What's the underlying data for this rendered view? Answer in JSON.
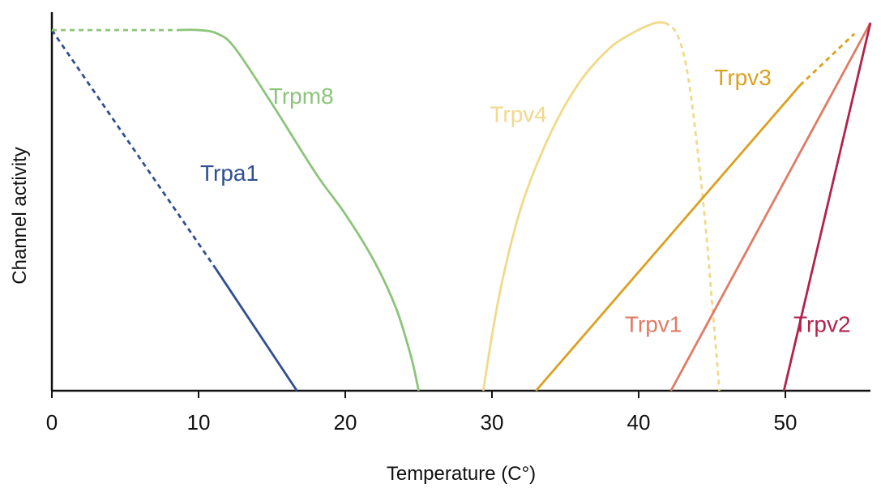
{
  "chart_data": {
    "type": "line",
    "xlabel": "Temperature (C°)",
    "ylabel": "Channel activity",
    "xlim": [
      0,
      55.8
    ],
    "ylim": [
      0,
      1
    ],
    "xticks": [
      0,
      10,
      20,
      30,
      40,
      50
    ],
    "yticks": [],
    "grid": false,
    "legend": "none",
    "series": [
      {
        "name": "Trpa1",
        "color": "#2f4f8f",
        "segments": [
          {
            "style": "dashed",
            "x": [
              0,
              11.2
            ],
            "y": [
              0.98,
              0.33
            ]
          },
          {
            "style": "solid",
            "x": [
              11.2,
              16.7
            ],
            "y": [
              0.33,
              0.0
            ]
          }
        ]
      },
      {
        "name": "Trpm8",
        "color": "#8cc47a",
        "segments": [
          {
            "style": "dashed",
            "x": [
              0,
              8.5
            ],
            "y": [
              0.98,
              0.98
            ]
          },
          {
            "style": "solid",
            "x": [
              8.5,
              10.0,
              11.3,
              12.5,
              15.0,
              18.0,
              20.0,
              22.0,
              23.5,
              24.5,
              25.0
            ],
            "y": [
              0.98,
              0.98,
              0.97,
              0.93,
              0.78,
              0.59,
              0.48,
              0.35,
              0.22,
              0.09,
              0.0
            ]
          }
        ]
      },
      {
        "name": "Trpv4",
        "color": "#f1d98a",
        "segments": [
          {
            "style": "solid",
            "x": [
              29.4,
              30.5,
              32.0,
              34.0,
              36.0,
              38.0,
              39.5,
              40.5,
              41.2,
              41.8
            ],
            "y": [
              0.0,
              0.26,
              0.5,
              0.7,
              0.84,
              0.93,
              0.97,
              0.99,
              1.0,
              1.0
            ]
          },
          {
            "style": "dashed",
            "x": [
              41.8,
              42.6,
              43.3,
              44.0,
              44.6,
              45.0,
              45.3,
              45.5
            ],
            "y": [
              1.0,
              0.97,
              0.87,
              0.66,
              0.43,
              0.24,
              0.1,
              0.0
            ]
          }
        ]
      },
      {
        "name": "Trpv3",
        "color": "#dba020",
        "segments": [
          {
            "style": "solid",
            "x": [
              33.0,
              51.0
            ],
            "y": [
              0.0,
              0.83
            ]
          },
          {
            "style": "dashed",
            "x": [
              51.0,
              54.7
            ],
            "y": [
              0.83,
              0.97
            ]
          }
        ]
      },
      {
        "name": "Trpv1",
        "color": "#e07b64",
        "segments": [
          {
            "style": "solid",
            "x": [
              42.2,
              55.8
            ],
            "y": [
              0.0,
              1.0
            ]
          }
        ]
      },
      {
        "name": "Trpv2",
        "color": "#b2224a",
        "segments": [
          {
            "style": "solid",
            "x": [
              49.9,
              55.8
            ],
            "y": [
              0.0,
              1.0
            ]
          }
        ]
      }
    ],
    "labels": [
      {
        "text": "Trpa1",
        "series": "Trpa1",
        "x": 12.1,
        "y": 0.57
      },
      {
        "text": "Trpm8",
        "series": "Trpm8",
        "x": 17.0,
        "y": 0.78
      },
      {
        "text": "Trpv4",
        "series": "Trpv4",
        "x": 31.8,
        "y": 0.73
      },
      {
        "text": "Trpv3",
        "series": "Trpv3",
        "x": 47.1,
        "y": 0.83
      },
      {
        "text": "Trpv1",
        "series": "Trpv1",
        "x": 41.0,
        "y": 0.16
      },
      {
        "text": "Trpv2",
        "series": "Trpv2",
        "x": 52.5,
        "y": 0.16
      }
    ]
  }
}
